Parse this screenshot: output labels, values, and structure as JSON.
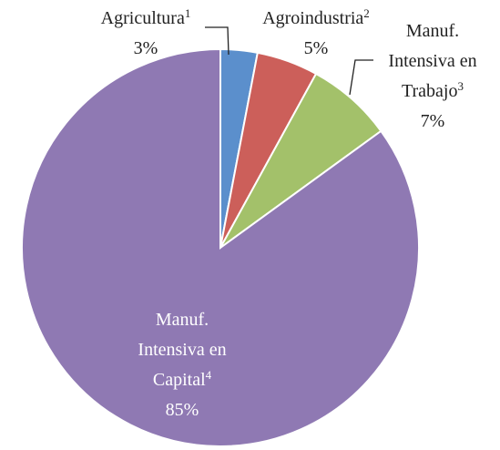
{
  "chart_data": {
    "type": "pie",
    "categories": [
      "Agricultura",
      "Agroindustria",
      "Manuf. Intensiva en Trabajo",
      "Manuf. Intensiva en Capital"
    ],
    "notes": [
      "1",
      "2",
      "3",
      "4"
    ],
    "values": [
      3,
      5,
      7,
      85
    ],
    "value_labels": [
      "3%",
      "5%",
      "7%",
      "85%"
    ],
    "colors": [
      "#5b8fcc",
      "#cc5f5a",
      "#a3c16a",
      "#8f79b3"
    ]
  }
}
